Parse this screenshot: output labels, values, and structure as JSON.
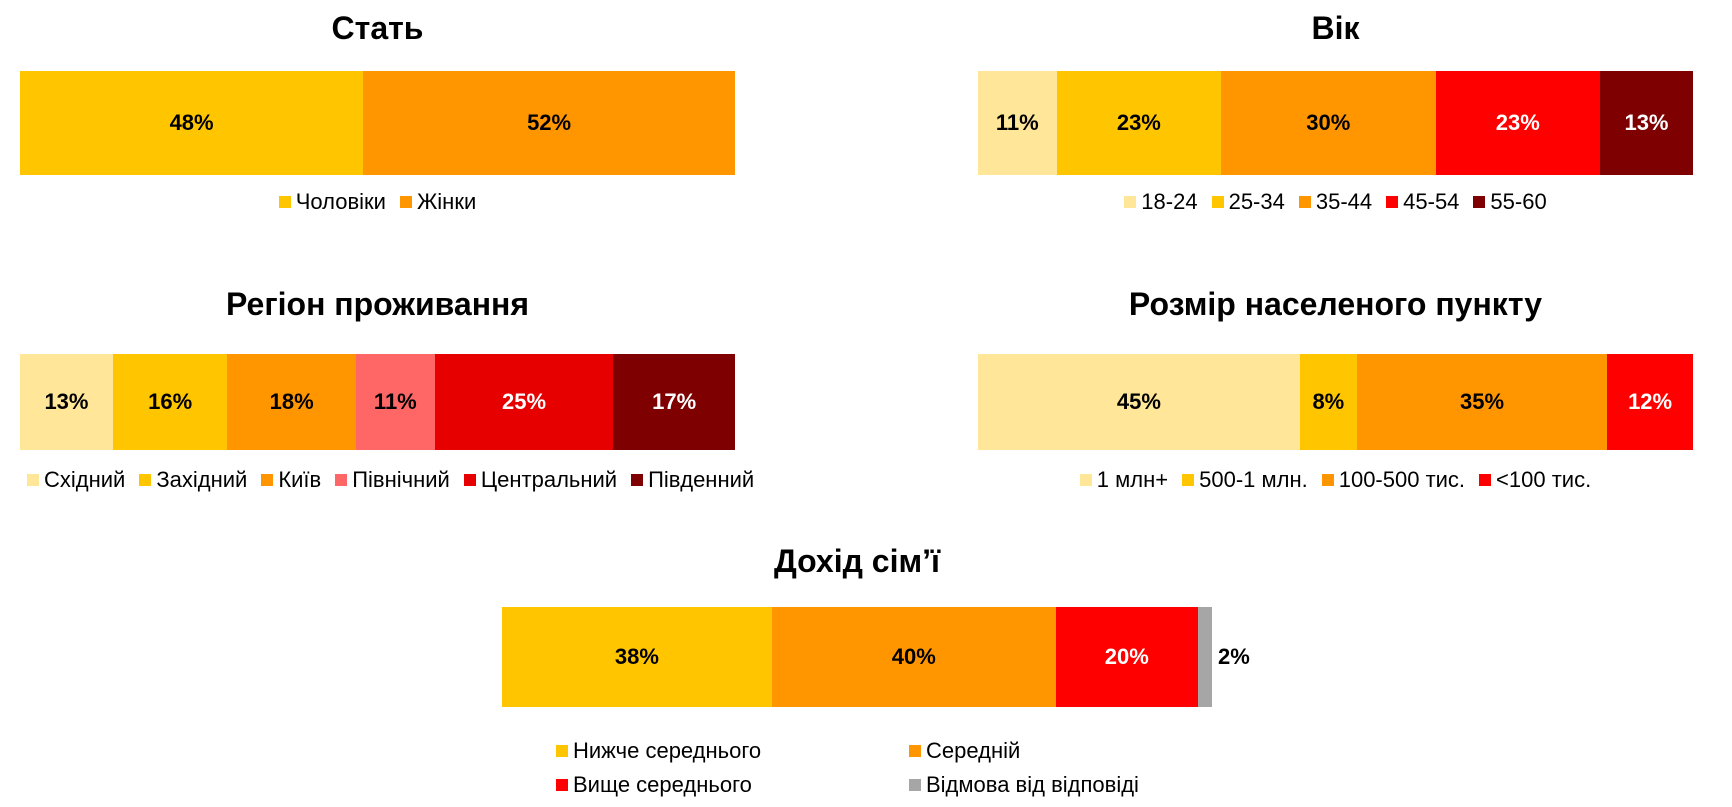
{
  "chart_data": [
    {
      "type": "bar",
      "id": "gender",
      "title": "Стать",
      "orientation": "horizontal-stacked-100",
      "series": [
        {
          "name": "Чоловіки",
          "value": 48,
          "label": "48%",
          "color": "#FFC600",
          "text_color": "#000000"
        },
        {
          "name": "Жінки",
          "value": 52,
          "label": "52%",
          "color": "#FF9600",
          "text_color": "#000000"
        }
      ]
    },
    {
      "type": "bar",
      "id": "age",
      "title": "Вік",
      "orientation": "horizontal-stacked-100",
      "series": [
        {
          "name": "18-24",
          "value": 11,
          "label": "11%",
          "color": "#FFE699",
          "text_color": "#000000"
        },
        {
          "name": "25-34",
          "value": 23,
          "label": "23%",
          "color": "#FFC600",
          "text_color": "#000000"
        },
        {
          "name": "35-44",
          "value": 30,
          "label": "30%",
          "color": "#FF9600",
          "text_color": "#000000"
        },
        {
          "name": "45-54",
          "value": 23,
          "label": "23%",
          "color": "#FF0000",
          "text_color": "#FFFFFF"
        },
        {
          "name": "55-60",
          "value": 13,
          "label": "13%",
          "color": "#7F0000",
          "text_color": "#FFFFFF"
        }
      ]
    },
    {
      "type": "bar",
      "id": "region",
      "title": "Регіон проживання",
      "orientation": "horizontal-stacked-100",
      "series": [
        {
          "name": "Східний",
          "value": 13,
          "label": "13%",
          "color": "#FFE699",
          "text_color": "#000000"
        },
        {
          "name": "Західний",
          "value": 16,
          "label": "16%",
          "color": "#FFC600",
          "text_color": "#000000"
        },
        {
          "name": "Київ",
          "value": 18,
          "label": "18%",
          "color": "#FF9600",
          "text_color": "#000000"
        },
        {
          "name": "Північний",
          "value": 11,
          "label": "11%",
          "color": "#FF6666",
          "text_color": "#000000"
        },
        {
          "name": "Центральний",
          "value": 25,
          "label": "25%",
          "color": "#E60000",
          "text_color": "#FFFFFF"
        },
        {
          "name": "Південний",
          "value": 17,
          "label": "17%",
          "color": "#7F0000",
          "text_color": "#FFFFFF"
        }
      ]
    },
    {
      "type": "bar",
      "id": "settlement",
      "title": "Розмір населеного пункту",
      "orientation": "horizontal-stacked-100",
      "series": [
        {
          "name": "1 млн+",
          "value": 45,
          "label": "45%",
          "color": "#FFE699",
          "text_color": "#000000"
        },
        {
          "name": "500-1 млн.",
          "value": 8,
          "label": "8%",
          "color": "#FFC600",
          "text_color": "#000000"
        },
        {
          "name": "100-500 тис.",
          "value": 35,
          "label": "35%",
          "color": "#FF9600",
          "text_color": "#000000"
        },
        {
          "name": "<100 тис.",
          "value": 12,
          "label": "12%",
          "color": "#FF0000",
          "text_color": "#FFFFFF"
        }
      ]
    },
    {
      "type": "bar",
      "id": "income",
      "title": "Дохід сім’ї",
      "orientation": "horizontal-stacked-100",
      "series": [
        {
          "name": "Нижче середнього",
          "value": 38,
          "label": "38%",
          "color": "#FFC600",
          "text_color": "#000000"
        },
        {
          "name": "Середній",
          "value": 40,
          "label": "40%",
          "color": "#FF9600",
          "text_color": "#000000"
        },
        {
          "name": "Вище середнього",
          "value": 20,
          "label": "20%",
          "color": "#FF0000",
          "text_color": "#FFFFFF"
        },
        {
          "name": "Відмова від відповіді",
          "value": 2,
          "label": "2%",
          "color": "#A6A6A6",
          "text_color": "#000000",
          "label_outside": true
        }
      ]
    }
  ]
}
